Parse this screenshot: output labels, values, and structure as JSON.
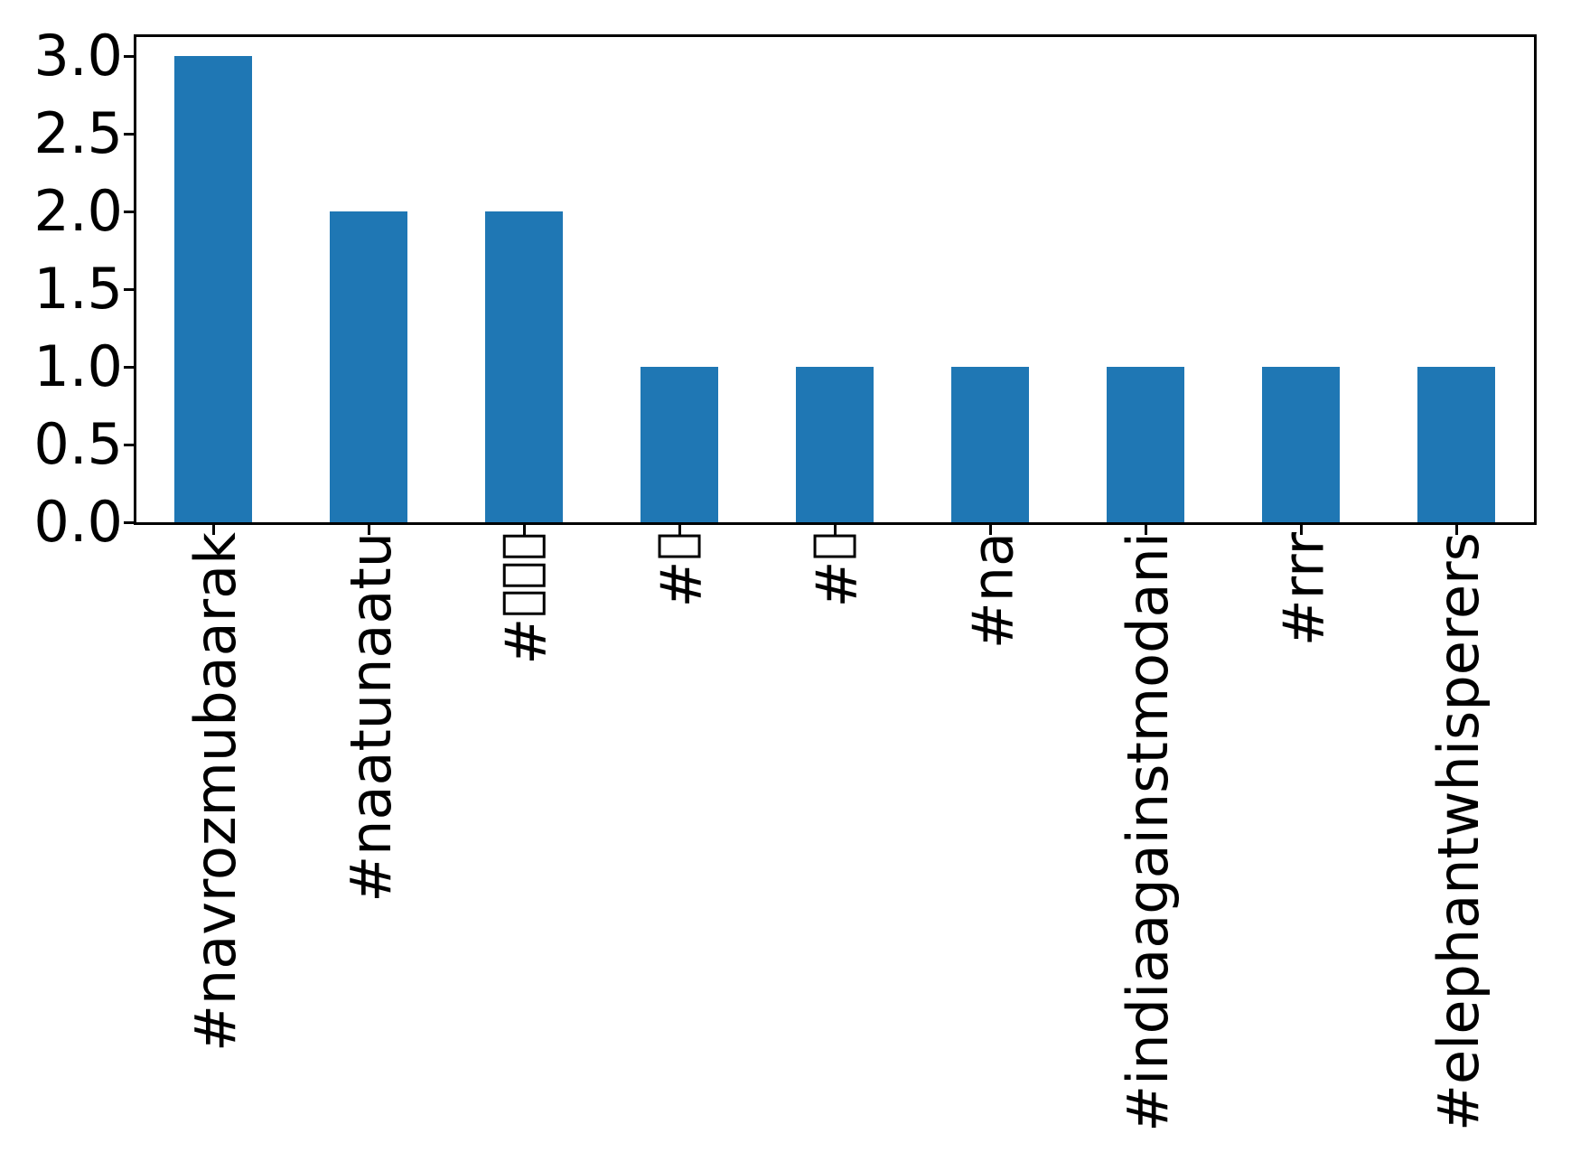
{
  "chart_data": {
    "type": "bar",
    "categories": [
      "#navrozmubaarak",
      "#naatunaatu",
      "#□□□",
      "#□",
      "#□",
      "#na",
      "#indiaagainstmodani",
      "#rrr",
      "#elephantwhisperers"
    ],
    "values": [
      3,
      2,
      2,
      1,
      1,
      1,
      1,
      1,
      1
    ],
    "title": "",
    "xlabel": "",
    "ylabel": "",
    "ylim": [
      0,
      3.13
    ],
    "yticks": [
      0.0,
      0.5,
      1.0,
      1.5,
      2.0,
      2.5,
      3.0
    ],
    "ytick_labels": [
      "0.0",
      "0.5",
      "1.0",
      "1.5",
      "2.0",
      "2.5",
      "3.0"
    ],
    "bar_color": "#1f77b4",
    "axis_color": "#000000",
    "text_color": "#000000",
    "background_color": "#ffffff",
    "grid": false,
    "legend": "none",
    "xtick_label_rotation_degrees": 90,
    "missing_glyph_placeholder": "□"
  }
}
